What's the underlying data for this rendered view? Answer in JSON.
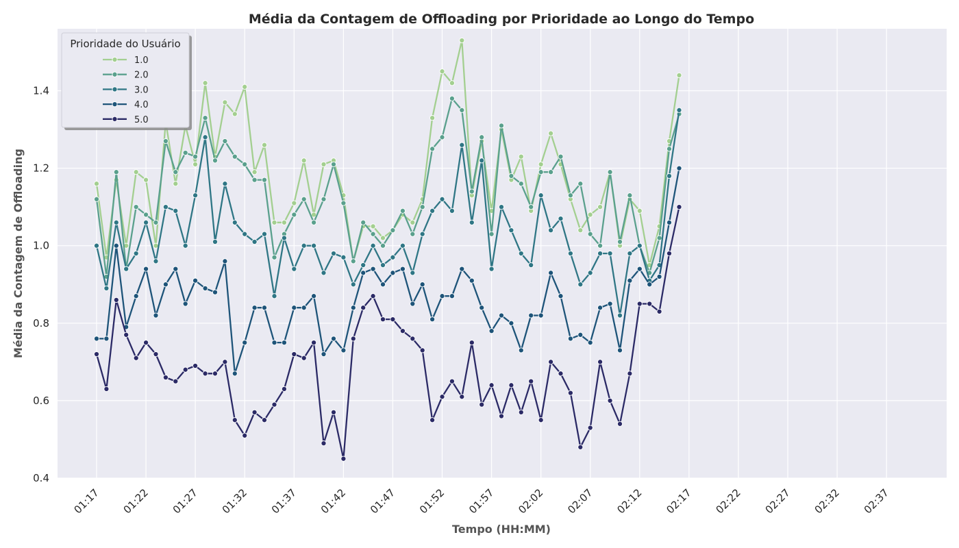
{
  "chart_data": {
    "type": "line",
    "title": "Média da Contagem de Offloading por Prioridade ao Longo do Tempo",
    "xlabel": "Tempo (HH:MM)",
    "ylabel": "Média da Contagem de Offloading",
    "ylim": [
      0.4,
      1.56
    ],
    "yticks": [
      "0.4",
      "0.6",
      "0.8",
      "1.0",
      "1.2",
      "1.4"
    ],
    "xticks": [
      "01:17",
      "01:22",
      "01:27",
      "01:32",
      "01:37",
      "01:42",
      "01:47",
      "01:52",
      "01:57",
      "02:02",
      "02:07",
      "02:12",
      "02:17",
      "02:22",
      "02:27",
      "02:32",
      "02:37"
    ],
    "x_start": "01:17",
    "x_end": "02:39",
    "grid": true,
    "legend": {
      "title": "Prioridade do Usuário",
      "placement": "top-left"
    },
    "series": [
      {
        "name": "1.0",
        "color": "#a3cf90",
        "values": [
          1.16,
          0.97,
          1.17,
          1.0,
          1.19,
          1.17,
          1.0,
          1.32,
          1.16,
          1.31,
          1.21,
          1.42,
          1.23,
          1.37,
          1.34,
          1.41,
          1.19,
          1.26,
          1.06,
          1.06,
          1.11,
          1.22,
          1.08,
          1.21,
          1.22,
          1.13,
          0.96,
          1.05,
          1.05,
          1.02,
          1.04,
          1.08,
          1.06,
          1.12,
          1.33,
          1.45,
          1.42,
          1.53,
          1.13,
          1.27,
          1.09,
          1.3,
          1.17,
          1.23,
          1.09,
          1.21,
          1.29,
          1.21,
          1.12,
          1.04,
          1.08,
          1.1,
          1.19,
          1.0,
          1.12,
          1.09,
          0.95,
          1.05,
          1.27,
          1.44
        ]
      },
      {
        "name": "2.0",
        "color": "#5aa08d",
        "values": [
          1.12,
          0.92,
          1.19,
          0.94,
          1.1,
          1.08,
          1.06,
          1.27,
          1.19,
          1.24,
          1.23,
          1.33,
          1.22,
          1.27,
          1.23,
          1.21,
          1.17,
          1.17,
          0.97,
          1.03,
          1.08,
          1.12,
          1.06,
          1.12,
          1.21,
          1.11,
          0.96,
          1.06,
          1.03,
          1.0,
          1.04,
          1.09,
          1.03,
          1.1,
          1.25,
          1.28,
          1.38,
          1.35,
          1.14,
          1.28,
          1.03,
          1.31,
          1.18,
          1.16,
          1.1,
          1.19,
          1.19,
          1.23,
          1.13,
          1.16,
          1.03,
          1.0,
          1.19,
          1.01,
          1.13,
          1.0,
          0.93,
          1.02,
          1.25,
          1.34
        ]
      },
      {
        "name": "3.0",
        "color": "#2f7685",
        "values": [
          1.0,
          0.89,
          1.06,
          0.94,
          0.98,
          1.06,
          0.96,
          1.1,
          1.09,
          1.0,
          1.13,
          1.28,
          1.01,
          1.16,
          1.06,
          1.03,
          1.01,
          1.03,
          0.87,
          1.02,
          0.94,
          1.0,
          1.0,
          0.93,
          0.98,
          0.97,
          0.9,
          0.95,
          1.0,
          0.95,
          0.97,
          1.0,
          0.93,
          1.03,
          1.09,
          1.12,
          1.09,
          1.26,
          1.06,
          1.22,
          0.94,
          1.1,
          1.04,
          0.98,
          0.95,
          1.13,
          1.04,
          1.07,
          0.98,
          0.9,
          0.93,
          0.98,
          0.98,
          0.82,
          0.98,
          1.0,
          0.91,
          0.95,
          1.18,
          1.35
        ]
      },
      {
        "name": "4.0",
        "color": "#1e5479",
        "values": [
          0.76,
          0.76,
          1.0,
          0.79,
          0.87,
          0.94,
          0.82,
          0.9,
          0.94,
          0.85,
          0.91,
          0.89,
          0.88,
          0.96,
          0.67,
          0.75,
          0.84,
          0.84,
          0.75,
          0.75,
          0.84,
          0.84,
          0.87,
          0.72,
          0.76,
          0.73,
          0.84,
          0.93,
          0.94,
          0.9,
          0.93,
          0.94,
          0.85,
          0.9,
          0.81,
          0.87,
          0.87,
          0.94,
          0.91,
          0.84,
          0.78,
          0.82,
          0.8,
          0.73,
          0.82,
          0.82,
          0.93,
          0.87,
          0.76,
          0.77,
          0.75,
          0.84,
          0.85,
          0.73,
          0.91,
          0.94,
          0.9,
          0.92,
          1.06,
          1.2
        ]
      },
      {
        "name": "5.0",
        "color": "#2b2a66",
        "values": [
          0.72,
          0.63,
          0.86,
          0.77,
          0.71,
          0.75,
          0.72,
          0.66,
          0.65,
          0.68,
          0.69,
          0.67,
          0.67,
          0.7,
          0.55,
          0.51,
          0.57,
          0.55,
          0.59,
          0.63,
          0.72,
          0.71,
          0.75,
          0.49,
          0.57,
          0.45,
          0.76,
          0.84,
          0.87,
          0.81,
          0.81,
          0.78,
          0.76,
          0.73,
          0.55,
          0.61,
          0.65,
          0.61,
          0.75,
          0.59,
          0.64,
          0.56,
          0.64,
          0.57,
          0.65,
          0.55,
          0.7,
          0.67,
          0.62,
          0.48,
          0.53,
          0.7,
          0.6,
          0.54,
          0.67,
          0.85,
          0.85,
          0.83,
          0.98,
          1.1
        ]
      }
    ]
  }
}
